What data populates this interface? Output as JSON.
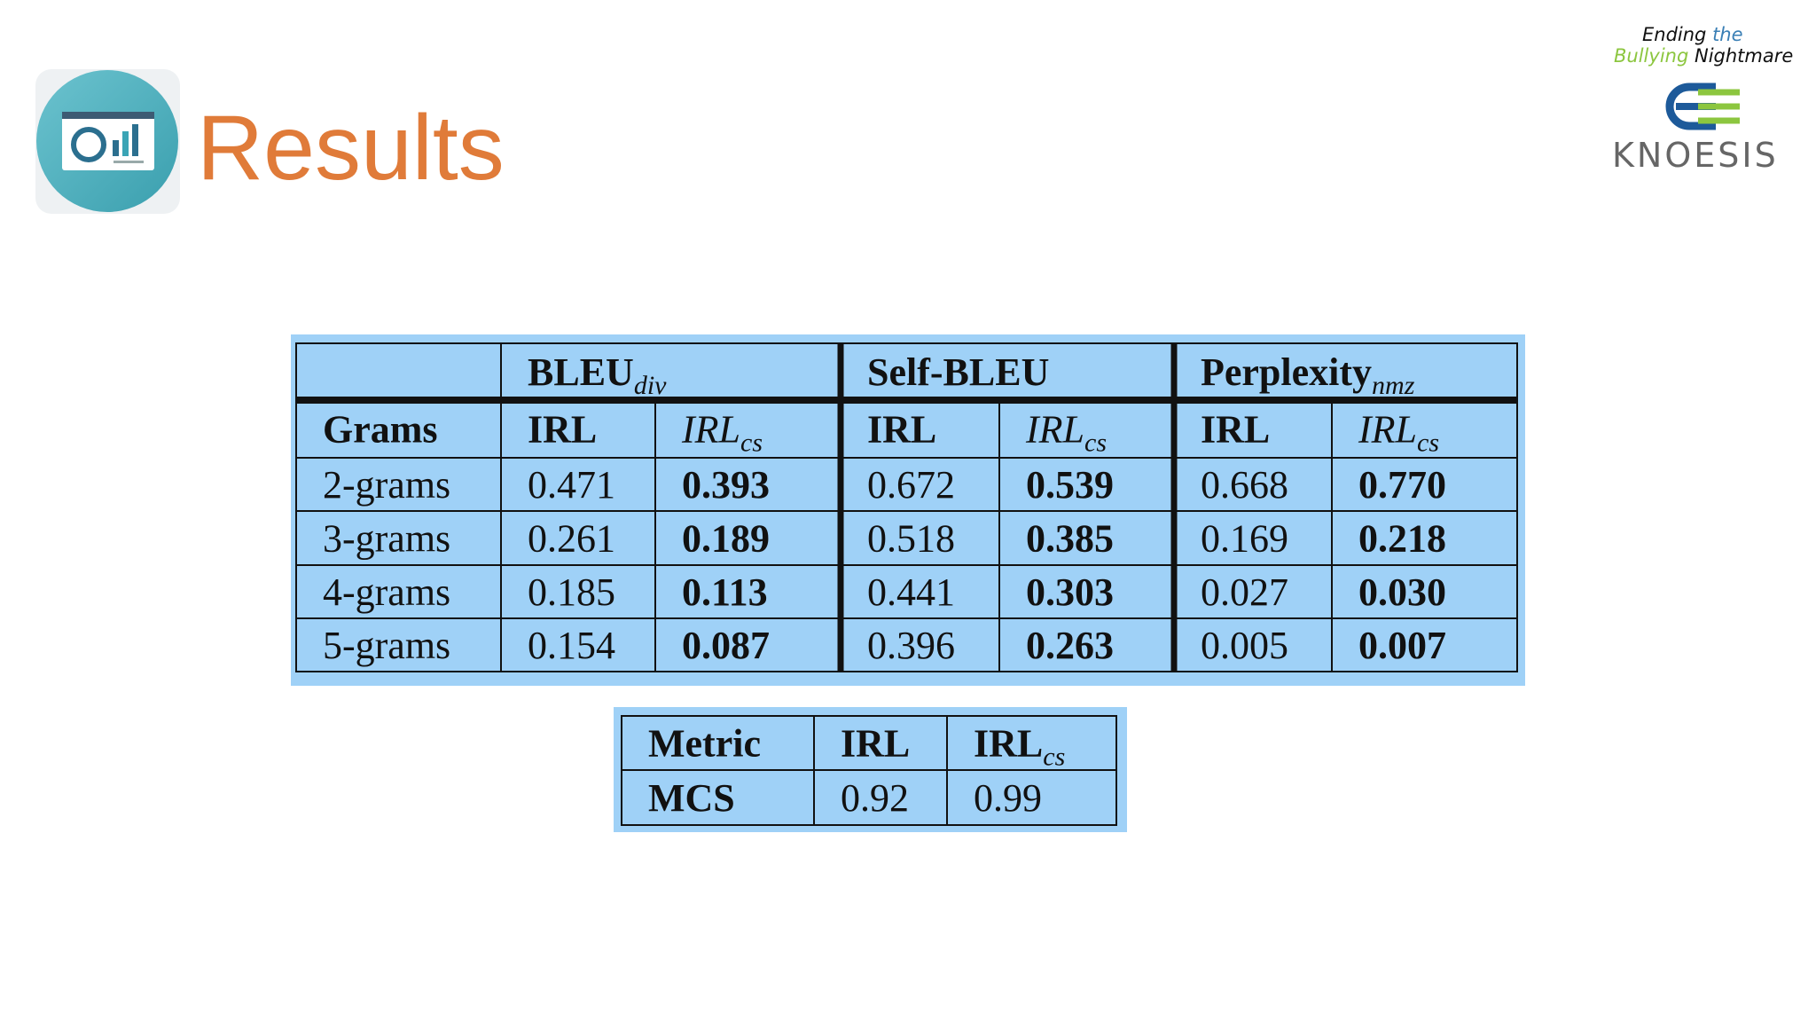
{
  "header": {
    "title": "Results"
  },
  "logo": {
    "line1": [
      "Ending",
      "the"
    ],
    "line2": [
      "Bullying",
      "Nightmare"
    ],
    "wordmark": "KNOESIS"
  },
  "table1": {
    "groups": [
      {
        "text": "BLEU",
        "sub": "div"
      },
      {
        "text": "Self-BLEU"
      },
      {
        "text": "Perplexity",
        "sub": "nmz"
      }
    ],
    "columns": [
      {
        "text": "Grams"
      },
      {
        "text": "IRL"
      },
      {
        "text": "IRL",
        "sub": "cs"
      },
      {
        "text": "IRL"
      },
      {
        "text": "IRL",
        "sub": "cs"
      },
      {
        "text": "IRL"
      },
      {
        "text": "IRL",
        "sub": "cs"
      }
    ],
    "rows": [
      [
        "2-grams",
        "0.471",
        "0.393",
        "0.672",
        "0.539",
        "0.668",
        "0.770"
      ],
      [
        "3-grams",
        "0.261",
        "0.189",
        "0.518",
        "0.385",
        "0.169",
        "0.218"
      ],
      [
        "4-grams",
        "0.185",
        "0.113",
        "0.441",
        "0.303",
        "0.027",
        "0.030"
      ],
      [
        "5-grams",
        "0.154",
        "0.087",
        "0.396",
        "0.263",
        "0.005",
        "0.007"
      ]
    ]
  },
  "table2": {
    "columns": [
      {
        "text": "Metric"
      },
      {
        "text": "IRL"
      },
      {
        "text": "IRL",
        "sub": "cs"
      }
    ],
    "rows": [
      [
        "MCS",
        "0.92",
        "0.99"
      ]
    ]
  }
}
